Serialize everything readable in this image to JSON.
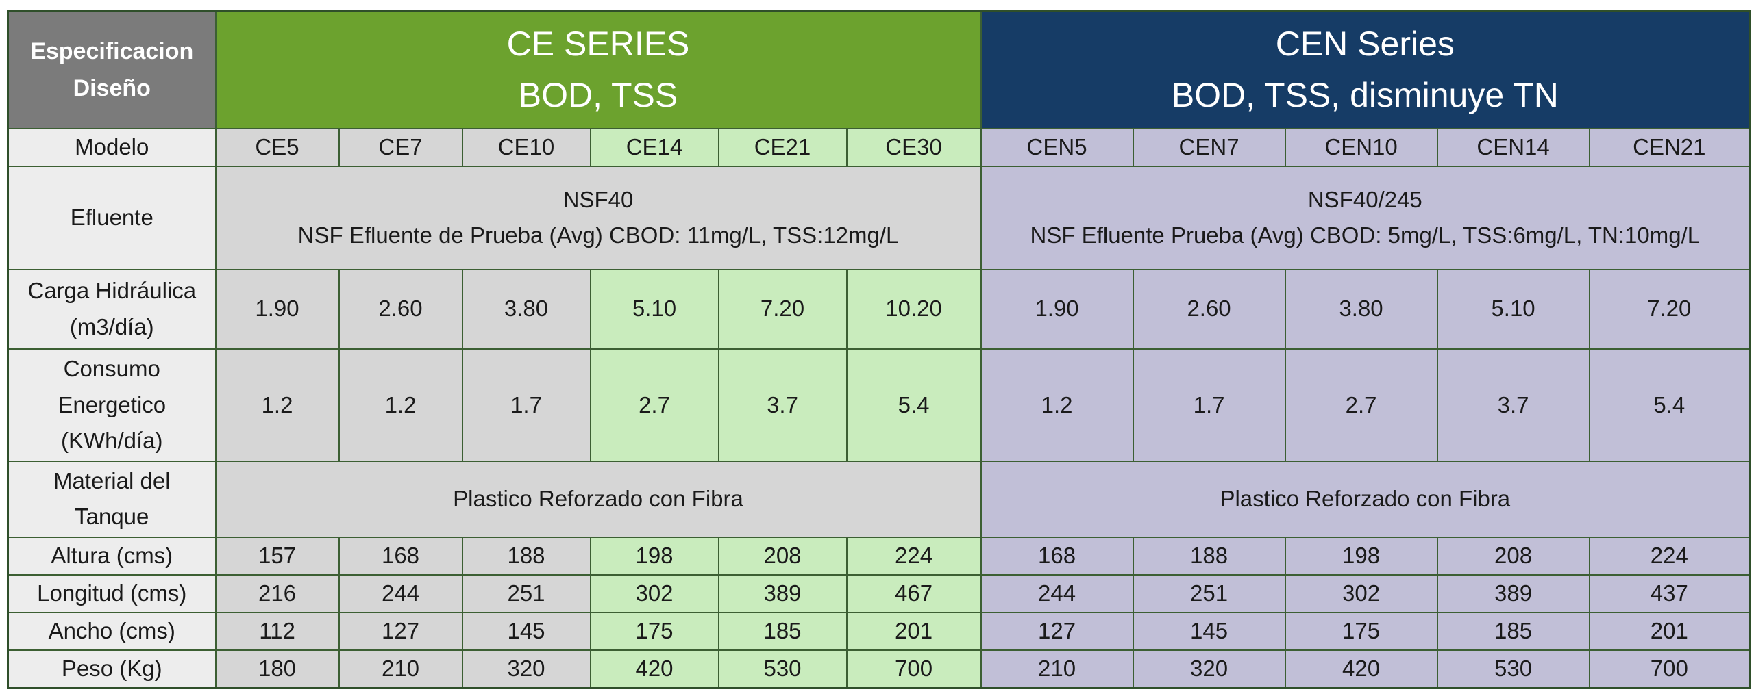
{
  "header": {
    "spec_line1": "Especificacion",
    "spec_line2": "Diseño",
    "ce_line1": "CE SERIES",
    "ce_line2": "BOD, TSS",
    "cen_line1": "CEN Series",
    "cen_line2": "BOD, TSS, disminuye TN"
  },
  "labels": {
    "modelo": "Modelo",
    "efluente": "Efluente",
    "carga_line1": "Carga Hidráulica",
    "carga_line2": "(m3/día)",
    "consumo_line1": "Consumo",
    "consumo_line2": "Energetico",
    "consumo_line3": "(KWh/día)",
    "material_line1": "Material del",
    "material_line2": "Tanque",
    "altura": "Altura (cms)",
    "longitud": "Longitud (cms)",
    "ancho": "Ancho (cms)",
    "peso": "Peso (Kg)"
  },
  "ce": {
    "models": [
      "CE5",
      "CE7",
      "CE10",
      "CE14",
      "CE21",
      "CE30"
    ],
    "efluente_line1": "NSF40",
    "efluente_line2": "NSF Efluente de Prueba (Avg)  CBOD: 11mg/L, TSS:12mg/L",
    "carga": [
      "1.90",
      "2.60",
      "3.80",
      "5.10",
      "7.20",
      "10.20"
    ],
    "consumo": [
      "1.2",
      "1.2",
      "1.7",
      "2.7",
      "3.7",
      "5.4"
    ],
    "material": "Plastico Reforzado con Fibra",
    "altura": [
      "157",
      "168",
      "188",
      "198",
      "208",
      "224"
    ],
    "longitud": [
      "216",
      "244",
      "251",
      "302",
      "389",
      "467"
    ],
    "ancho": [
      "112",
      "127",
      "145",
      "175",
      "185",
      "201"
    ],
    "peso": [
      "180",
      "210",
      "320",
      "420",
      "530",
      "700"
    ]
  },
  "cen": {
    "models": [
      "CEN5",
      "CEN7",
      "CEN10",
      "CEN14",
      "CEN21"
    ],
    "efluente_line1": "NSF40/245",
    "efluente_line2": "NSF Efluente Prueba (Avg)  CBOD: 5mg/L, TSS:6mg/L, TN:10mg/L",
    "carga": [
      "1.90",
      "2.60",
      "3.80",
      "5.10",
      "7.20"
    ],
    "consumo": [
      "1.2",
      "1.7",
      "2.7",
      "3.7",
      "5.4"
    ],
    "material": "Plastico Reforzado con Fibra",
    "altura": [
      "168",
      "188",
      "198",
      "208",
      "224"
    ],
    "longitud": [
      "244",
      "251",
      "302",
      "389",
      "437"
    ],
    "ancho": [
      "127",
      "145",
      "175",
      "185",
      "201"
    ],
    "peso": [
      "210",
      "320",
      "420",
      "530",
      "700"
    ]
  },
  "colors": {
    "spec_header": "#7b7b7b",
    "ce_header": "#6ca22e",
    "cen_header": "#163c66",
    "gray_cell": "#d6d6d6",
    "green_cell": "#c9ecbd",
    "purple_cell": "#c1bfd7",
    "label_cell": "#ededed",
    "border": "#3c5f33"
  }
}
